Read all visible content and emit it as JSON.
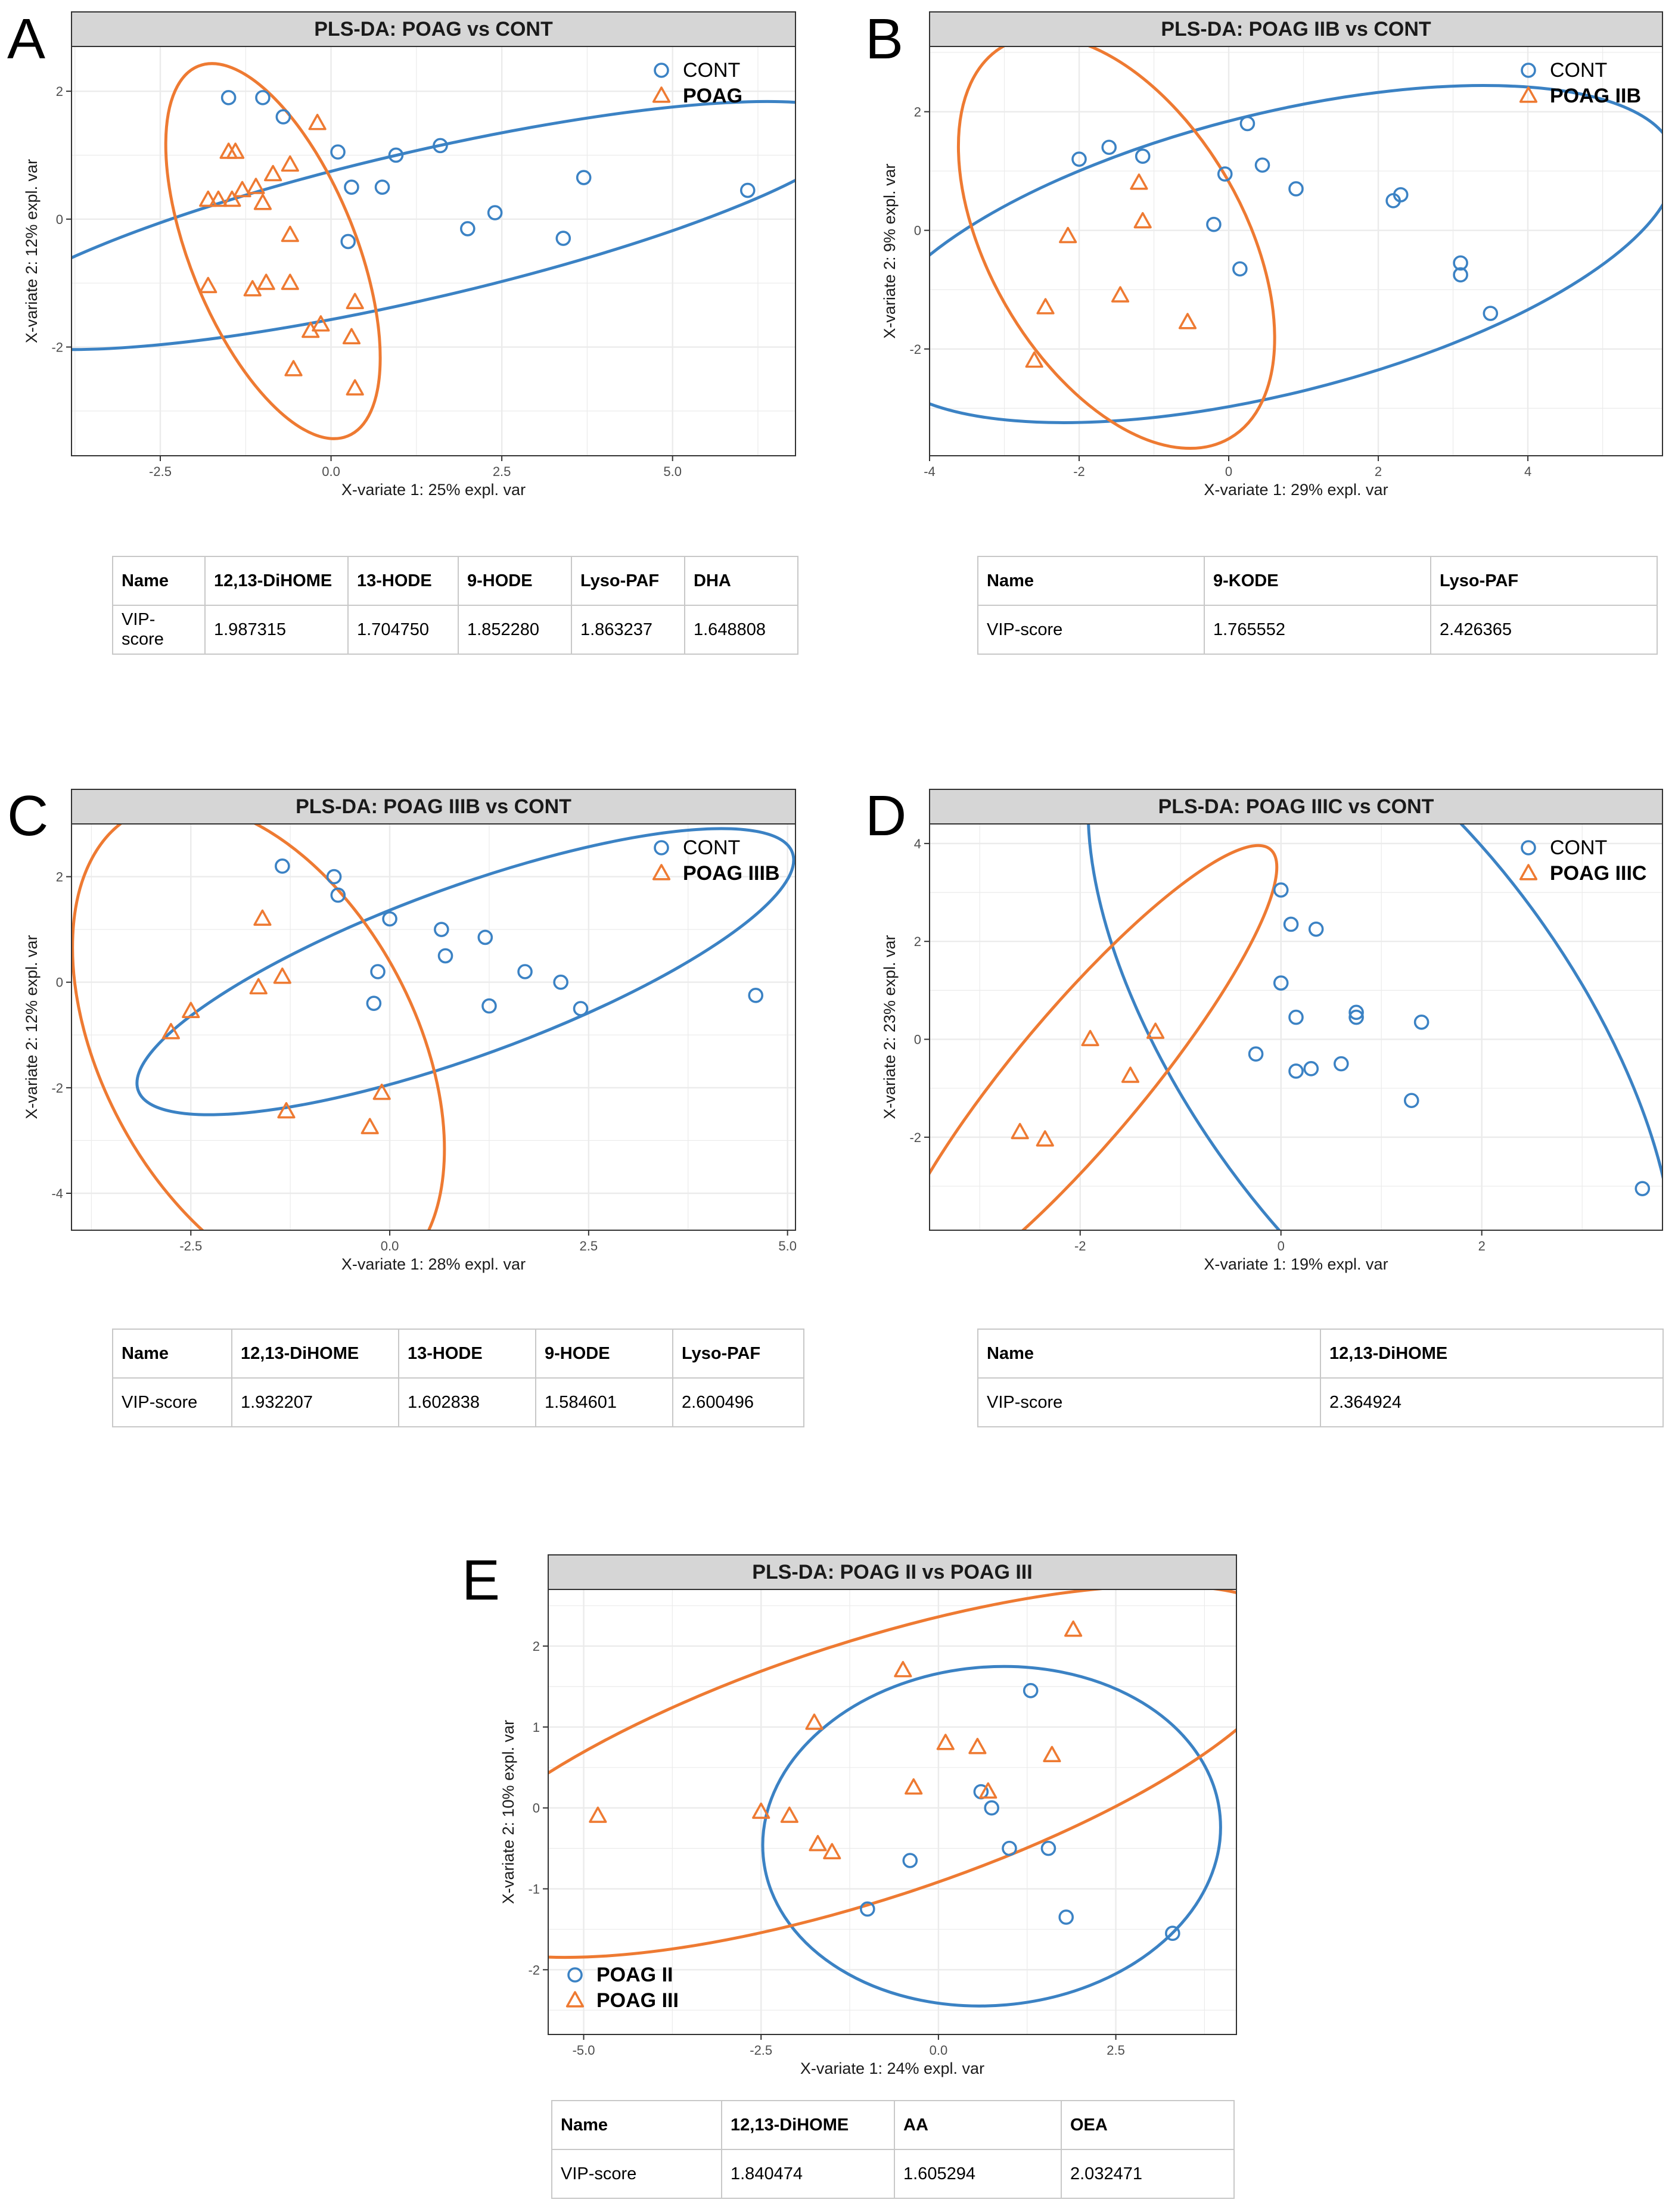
{
  "colors": {
    "cont": "#3b82c4",
    "poag": "#ee7a32",
    "strip": "#d6d6d6",
    "grid": "#ebebeb"
  },
  "table_header": "Name",
  "table_row_label": "VIP-score",
  "chart_data": [
    {
      "panel": "A",
      "type": "scatter",
      "title": "PLS-DA: POAG vs CONT",
      "xlabel": "X-variate 1: 25% expl. var",
      "ylabel": "X-variate 2: 12% expl. var",
      "xlim": [
        -3.8,
        6.8
      ],
      "ylim": [
        -3.7,
        2.7
      ],
      "xticks": [
        -2.5,
        0.0,
        2.5,
        5.0
      ],
      "xticklabels": [
        "-2.5",
        "0.0",
        "2.5",
        "5.0"
      ],
      "yticks": [
        -2,
        0,
        2
      ],
      "yticklabels": [
        "-2",
        "0",
        "2"
      ],
      "legend_position": "top-right",
      "series": [
        {
          "name": "CONT",
          "marker": "circle",
          "x": [
            -1.5,
            -1.0,
            -0.7,
            0.1,
            0.3,
            0.75,
            0.95,
            1.6,
            2.0,
            2.4,
            3.4,
            3.7,
            6.1,
            0.25
          ],
          "y": [
            1.9,
            1.9,
            1.6,
            1.05,
            0.5,
            0.5,
            1.0,
            1.15,
            -0.15,
            0.1,
            -0.3,
            0.65,
            0.45,
            -0.35
          ]
        },
        {
          "name": "POAG",
          "marker": "triangle",
          "x": [
            -1.5,
            -1.4,
            -0.2,
            -1.8,
            -1.65,
            -1.45,
            -1.3,
            -1.1,
            -0.85,
            -0.6,
            -1.0,
            -0.6,
            -1.8,
            -1.15,
            -0.95,
            -0.6,
            0.35,
            -0.3,
            -0.15,
            0.3,
            -0.55,
            0.35
          ],
          "y": [
            1.05,
            1.05,
            1.5,
            0.3,
            0.3,
            0.3,
            0.45,
            0.5,
            0.7,
            0.85,
            0.25,
            -0.25,
            -1.05,
            -1.1,
            -1.0,
            -1.0,
            -1.3,
            -1.75,
            -1.65,
            -1.85,
            -2.35,
            -2.65
          ]
        }
      ],
      "ellipses": [
        {
          "series": "CONT",
          "center": [
            1.3,
            -0.1
          ],
          "rx": 5.55,
          "ry": 0.95,
          "angle": -13
        },
        {
          "series": "POAG",
          "center": [
            -0.85,
            -0.5
          ],
          "rx": 0.95,
          "ry": 2.35,
          "angle": -22
        }
      ],
      "table": {
        "names": [
          "12,13-DiHOME",
          "13-HODE",
          "9-HODE",
          "Lyso-PAF",
          "DHA"
        ],
        "values": [
          "1.987315",
          "1.704750",
          "1.852280",
          "1.863237",
          "1.648808"
        ]
      }
    },
    {
      "panel": "B",
      "type": "scatter",
      "title": "PLS-DA: POAG IIB vs CONT",
      "xlabel": "X-variate 1: 29% expl. var",
      "ylabel": "X-variate 2: 9% expl. var",
      "xlim": [
        -4.0,
        5.8
      ],
      "ylim": [
        -3.8,
        3.1
      ],
      "xticks": [
        -4,
        -2,
        0,
        2,
        4
      ],
      "xticklabels": [
        "-4",
        "-2",
        "0",
        "2",
        "4"
      ],
      "yticks": [
        -2,
        0,
        2
      ],
      "yticklabels": [
        "-2",
        "0",
        "2"
      ],
      "legend_position": "top-right",
      "series": [
        {
          "name": "CONT",
          "marker": "circle",
          "x": [
            -2.0,
            -1.6,
            -1.15,
            0.25,
            0.45,
            -0.05,
            0.9,
            2.2,
            2.3,
            -0.2,
            3.1,
            3.1,
            3.5,
            0.15
          ],
          "y": [
            1.2,
            1.4,
            1.25,
            1.8,
            1.1,
            0.95,
            0.7,
            0.5,
            0.6,
            0.1,
            -0.55,
            -0.75,
            -1.4,
            -0.65
          ]
        },
        {
          "name": "POAG IIB",
          "marker": "triangle",
          "x": [
            -1.2,
            -1.15,
            -2.15,
            -1.45,
            -0.55,
            -2.45,
            -2.6
          ],
          "y": [
            0.8,
            0.15,
            -0.1,
            -1.1,
            -1.55,
            -1.3,
            -2.2
          ]
        }
      ],
      "ellipses": [
        {
          "series": "CONT",
          "center": [
            0.6,
            -0.4
          ],
          "rx": 4.75,
          "ry": 1.85,
          "angle": -14
        },
        {
          "series": "POAG IIB",
          "center": [
            -1.5,
            -0.2
          ],
          "rx": 1.35,
          "ry": 2.55,
          "angle": -30
        }
      ],
      "table": {
        "names": [
          "9-KODE",
          "Lyso-PAF"
        ],
        "values": [
          "1.765552",
          "2.426365"
        ]
      }
    },
    {
      "panel": "C",
      "type": "scatter",
      "title": "PLS-DA: POAG IIIB vs CONT",
      "xlabel": "X-variate 1: 28% expl. var",
      "ylabel": "X-variate 2: 12% expl. var",
      "xlim": [
        -4.0,
        5.1
      ],
      "ylim": [
        -4.7,
        3.0
      ],
      "xticks": [
        -2.5,
        0.0,
        2.5,
        5.0
      ],
      "xticklabels": [
        "-2.5",
        "0.0",
        "2.5",
        "5.0"
      ],
      "yticks": [
        -4,
        -2,
        0,
        2
      ],
      "yticklabels": [
        "-4",
        "-2",
        "0",
        "2"
      ],
      "legend_position": "top-right",
      "series": [
        {
          "name": "CONT",
          "marker": "circle",
          "x": [
            -1.35,
            -0.7,
            -0.65,
            0.0,
            0.65,
            1.2,
            0.7,
            1.7,
            2.15,
            2.4,
            4.6,
            -0.15,
            -0.2,
            1.25
          ],
          "y": [
            2.2,
            2.0,
            1.65,
            1.2,
            1.0,
            0.85,
            0.5,
            0.2,
            0.0,
            -0.5,
            -0.25,
            0.2,
            -0.4,
            -0.45
          ]
        },
        {
          "name": "POAG IIIB",
          "marker": "triangle",
          "x": [
            -1.6,
            -1.35,
            -1.65,
            -2.5,
            -2.75,
            -1.3,
            -0.1,
            -0.25
          ],
          "y": [
            1.2,
            0.1,
            -0.1,
            -0.55,
            -0.95,
            -2.45,
            -2.1,
            -2.75
          ]
        }
      ],
      "ellipses": [
        {
          "series": "CONT",
          "center": [
            0.95,
            0.2
          ],
          "rx": 3.75,
          "ry": 1.1,
          "angle": -20
        },
        {
          "series": "POAG IIIB",
          "center": [
            -1.65,
            -1.25
          ],
          "rx": 1.65,
          "ry": 3.15,
          "angle": -28
        }
      ],
      "table": {
        "names": [
          "12,13-DiHOME",
          "13-HODE",
          "9-HODE",
          "Lyso-PAF"
        ],
        "values": [
          "1.932207",
          "1.602838",
          "1.584601",
          "2.600496"
        ]
      }
    },
    {
      "panel": "D",
      "type": "scatter",
      "title": "PLS-DA: POAG IIIC vs CONT",
      "xlabel": "X-variate 1: 19% expl. var",
      "ylabel": "X-variate 2: 23% expl. var",
      "xlim": [
        -3.5,
        3.8
      ],
      "ylim": [
        -3.9,
        4.4
      ],
      "xticks": [
        -2,
        0,
        2
      ],
      "xticklabels": [
        "-2",
        "0",
        "2"
      ],
      "yticks": [
        -2,
        0,
        2,
        4
      ],
      "yticklabels": [
        "-2",
        "0",
        "2",
        "4"
      ],
      "legend_position": "top-right",
      "series": [
        {
          "name": "CONT",
          "marker": "circle",
          "x": [
            0.0,
            0.1,
            0.35,
            0.0,
            0.15,
            0.75,
            0.75,
            1.4,
            -0.25,
            0.15,
            0.3,
            0.6,
            1.3,
            3.6
          ],
          "y": [
            3.05,
            2.35,
            2.25,
            1.15,
            0.45,
            0.45,
            0.55,
            0.35,
            -0.3,
            -0.65,
            -0.6,
            -0.5,
            -1.25,
            -3.05
          ]
        },
        {
          "name": "POAG IIIC",
          "marker": "triangle",
          "x": [
            -1.9,
            -1.25,
            -1.5,
            -2.6,
            -2.35
          ],
          "y": [
            0.0,
            0.15,
            -0.75,
            -1.9,
            -2.05
          ]
        }
      ],
      "ellipses": [
        {
          "series": "CONT",
          "center": [
            1.0,
            0.0
          ],
          "rx": 1.8,
          "ry": 4.35,
          "angle": -35
        },
        {
          "series": "POAG IIIC",
          "center": [
            -2.0,
            -0.75
          ],
          "rx": 0.6,
          "ry": 2.9,
          "angle": 40
        }
      ],
      "table": {
        "names": [
          "12,13-DiHOME"
        ],
        "values": [
          "2.364924"
        ]
      }
    },
    {
      "panel": "E",
      "type": "scatter",
      "title": "PLS-DA: POAG II vs POAG III",
      "xlabel": "X-variate 1: 24% expl. var",
      "ylabel": "X-variate 2: 10% expl. var",
      "xlim": [
        -5.5,
        4.2
      ],
      "ylim": [
        -2.8,
        2.7
      ],
      "xticks": [
        -5.0,
        -2.5,
        0.0,
        2.5
      ],
      "xticklabels": [
        "-5.0",
        "-2.5",
        "0.0",
        "2.5"
      ],
      "yticks": [
        -2,
        -1,
        0,
        1,
        2
      ],
      "yticklabels": [
        "-2",
        "-1",
        "0",
        "1",
        "2"
      ],
      "legend_position": "bottom-left",
      "series": [
        {
          "name": "POAG II",
          "marker": "circle",
          "x": [
            1.3,
            0.6,
            0.75,
            1.0,
            1.55,
            -0.4,
            -1.0,
            1.8,
            3.3
          ],
          "y": [
            1.45,
            0.2,
            0.0,
            -0.5,
            -0.5,
            -0.65,
            -1.25,
            -1.35,
            -1.55
          ]
        },
        {
          "name": "POAG III",
          "marker": "triangle",
          "x": [
            1.9,
            -0.5,
            -1.75,
            0.1,
            0.55,
            1.6,
            -0.35,
            0.7,
            -4.8,
            -2.5,
            -2.1,
            -1.7,
            -1.5
          ],
          "y": [
            2.2,
            1.7,
            1.05,
            0.8,
            0.75,
            0.65,
            0.25,
            0.2,
            -0.1,
            -0.05,
            -0.1,
            -0.45,
            -0.55
          ]
        }
      ],
      "ellipses": [
        {
          "series": "POAG II",
          "center": [
            0.75,
            -0.35
          ],
          "rx": 2.95,
          "ry": 1.95,
          "angle": -5
        },
        {
          "series": "POAG III",
          "center": [
            -1.05,
            0.45
          ],
          "rx": 4.9,
          "ry": 1.3,
          "angle": -18
        }
      ],
      "table": {
        "names": [
          "12,13-DiHOME",
          "AA",
          "OEA"
        ],
        "values": [
          "1.840474",
          "1.605294",
          "2.032471"
        ]
      }
    }
  ]
}
